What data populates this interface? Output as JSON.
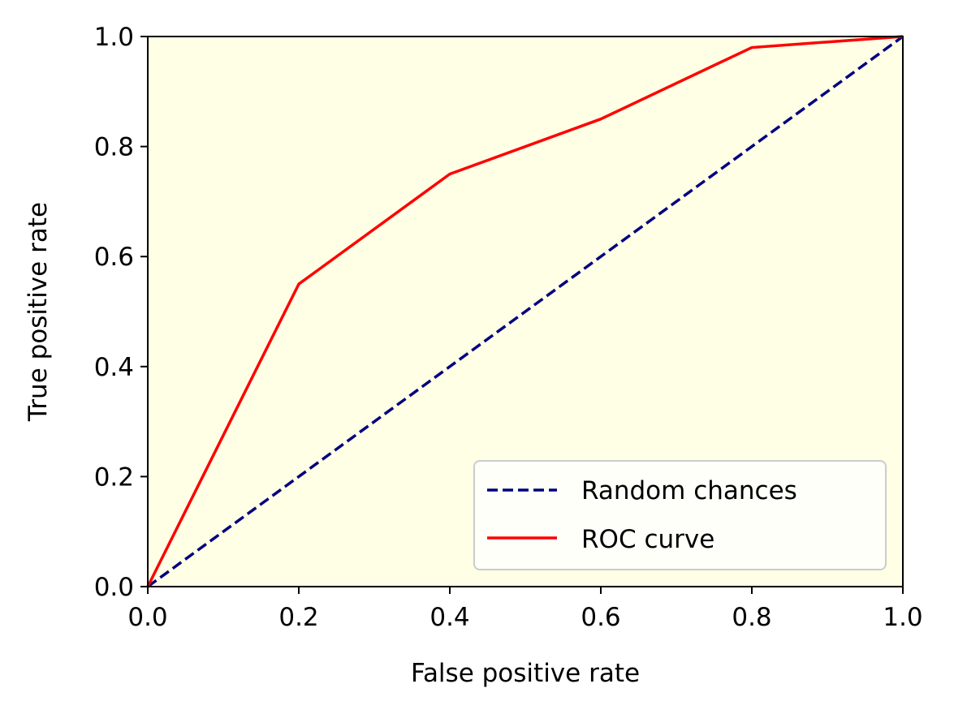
{
  "chart_data": {
    "type": "line",
    "title": "",
    "xlabel": "False positive rate",
    "ylabel": "True positive rate",
    "xlim": [
      0.0,
      1.0
    ],
    "ylim": [
      0.0,
      1.0
    ],
    "x_ticks": [
      "0.0",
      "0.2",
      "0.4",
      "0.6",
      "0.8",
      "1.0"
    ],
    "y_ticks": [
      "0.0",
      "0.2",
      "0.4",
      "0.6",
      "0.8",
      "1.0"
    ],
    "grid": false,
    "legend_position": "bottom-right",
    "plot_background": "#ffffe6",
    "series": [
      {
        "name": "Random chances",
        "style": "dashed",
        "color": "#000080",
        "x": [
          0.0,
          1.0
        ],
        "y": [
          0.0,
          1.0
        ]
      },
      {
        "name": "ROC curve",
        "style": "solid",
        "color": "#ff0000",
        "x": [
          0.0,
          0.2,
          0.4,
          0.6,
          0.8,
          1.0
        ],
        "y": [
          0.0,
          0.55,
          0.75,
          0.85,
          0.98,
          1.0
        ]
      }
    ]
  }
}
